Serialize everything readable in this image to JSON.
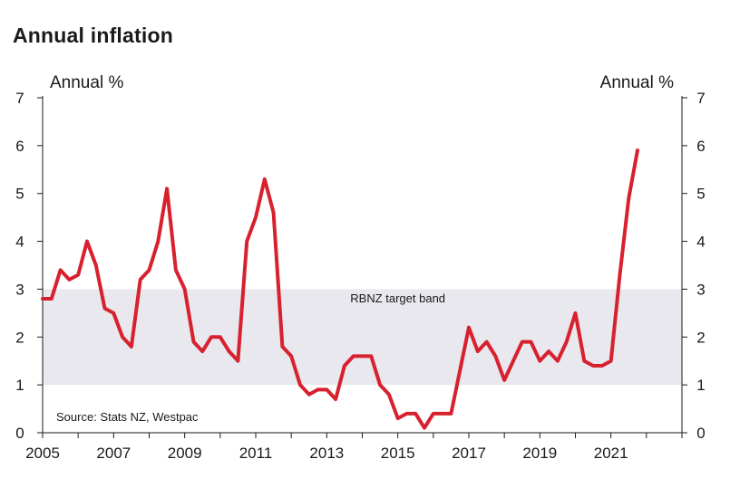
{
  "title": "Annual inflation",
  "chart_data": {
    "type": "line",
    "title": "Annual inflation",
    "ylabel_left": "Annual %",
    "ylabel_right": "Annual %",
    "ylim": [
      0,
      7
    ],
    "yticks": [
      0,
      1,
      2,
      3,
      4,
      5,
      6,
      7
    ],
    "xlim": [
      2005,
      2023
    ],
    "xticks": [
      2005,
      2007,
      2009,
      2011,
      2013,
      2015,
      2017,
      2019,
      2021
    ],
    "band": {
      "label": "RBNZ target band",
      "low": 1,
      "high": 3,
      "color": "#e8e8ee"
    },
    "source": "Source: Stats NZ, Westpac",
    "series": [
      {
        "name": "Annual inflation",
        "color": "#d8212f",
        "x": [
          2005.0,
          2005.25,
          2005.5,
          2005.75,
          2006.0,
          2006.25,
          2006.5,
          2006.75,
          2007.0,
          2007.25,
          2007.5,
          2007.75,
          2008.0,
          2008.25,
          2008.5,
          2008.75,
          2009.0,
          2009.25,
          2009.5,
          2009.75,
          2010.0,
          2010.25,
          2010.5,
          2010.75,
          2011.0,
          2011.25,
          2011.5,
          2011.75,
          2012.0,
          2012.25,
          2012.5,
          2012.75,
          2013.0,
          2013.25,
          2013.5,
          2013.75,
          2014.0,
          2014.25,
          2014.5,
          2014.75,
          2015.0,
          2015.25,
          2015.5,
          2015.75,
          2016.0,
          2016.25,
          2016.5,
          2016.75,
          2017.0,
          2017.25,
          2017.5,
          2017.75,
          2018.0,
          2018.25,
          2018.5,
          2018.75,
          2019.0,
          2019.25,
          2019.5,
          2019.75,
          2020.0,
          2020.25,
          2020.5,
          2020.75,
          2021.0,
          2021.25,
          2021.5,
          2021.75
        ],
        "values": [
          2.8,
          2.8,
          3.4,
          3.2,
          3.3,
          4.0,
          3.5,
          2.6,
          2.5,
          2.0,
          1.8,
          3.2,
          3.4,
          4.0,
          5.1,
          3.4,
          3.0,
          1.9,
          1.7,
          2.0,
          2.0,
          1.7,
          1.5,
          4.0,
          4.5,
          5.3,
          4.6,
          1.8,
          1.6,
          1.0,
          0.8,
          0.9,
          0.9,
          0.7,
          1.4,
          1.6,
          1.6,
          1.6,
          1.0,
          0.8,
          0.3,
          0.4,
          0.4,
          0.1,
          0.4,
          0.4,
          0.4,
          1.3,
          2.2,
          1.7,
          1.9,
          1.6,
          1.1,
          1.5,
          1.9,
          1.9,
          1.5,
          1.7,
          1.5,
          1.9,
          2.5,
          1.5,
          1.4,
          1.4,
          1.5,
          3.3,
          4.9,
          5.9
        ]
      }
    ]
  }
}
